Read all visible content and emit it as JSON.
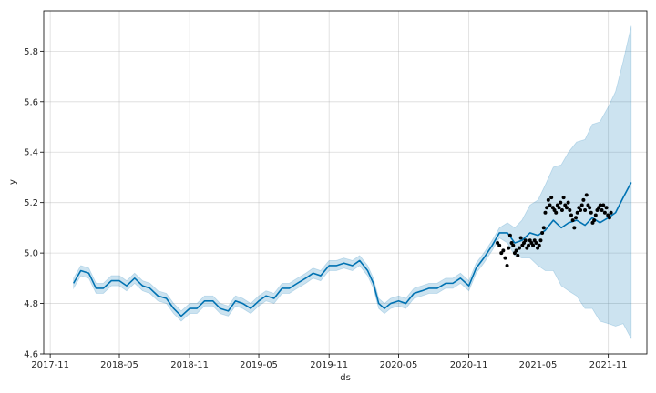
{
  "chart_data": {
    "type": "line",
    "title": "",
    "xlabel": "ds",
    "ylabel": "y",
    "grid": true,
    "xlim": [
      "2017-10-15",
      "2022-02-10"
    ],
    "ylim": [
      4.6,
      5.96
    ],
    "x_ticks": [
      "2017-11",
      "2018-05",
      "2018-11",
      "2019-05",
      "2019-11",
      "2020-05",
      "2020-11",
      "2021-05",
      "2021-11"
    ],
    "y_ticks": [
      "4.6",
      "4.8",
      "5.0",
      "5.2",
      "5.4",
      "5.6",
      "5.8"
    ],
    "colors": {
      "forecast": "#0072b2",
      "interval": "#0072b2",
      "observed": "#000000"
    },
    "forecast": {
      "x": [
        "2018-01-01",
        "2018-01-20",
        "2018-02-10",
        "2018-03-01",
        "2018-03-20",
        "2018-04-10",
        "2018-05-01",
        "2018-05-20",
        "2018-06-10",
        "2018-07-01",
        "2018-07-20",
        "2018-08-10",
        "2018-09-01",
        "2018-09-20",
        "2018-10-10",
        "2018-11-01",
        "2018-11-20",
        "2018-12-10",
        "2019-01-01",
        "2019-01-20",
        "2019-02-10",
        "2019-03-01",
        "2019-03-20",
        "2019-04-10",
        "2019-05-01",
        "2019-05-20",
        "2019-06-10",
        "2019-07-01",
        "2019-07-20",
        "2019-08-10",
        "2019-09-01",
        "2019-09-20",
        "2019-10-10",
        "2019-11-01",
        "2019-11-20",
        "2019-12-10",
        "2020-01-01",
        "2020-01-20",
        "2020-02-10",
        "2020-02-25",
        "2020-03-10",
        "2020-03-25",
        "2020-04-10",
        "2020-05-01",
        "2020-05-20",
        "2020-06-10",
        "2020-07-01",
        "2020-07-20",
        "2020-08-10",
        "2020-09-01",
        "2020-09-20",
        "2020-10-10",
        "2020-11-01",
        "2020-11-20",
        "2020-12-10",
        "2021-01-01",
        "2021-01-20",
        "2021-02-10",
        "2021-03-01",
        "2021-03-20",
        "2021-04-10",
        "2021-05-01",
        "2021-05-20",
        "2021-06-10",
        "2021-07-01",
        "2021-07-20",
        "2021-08-10",
        "2021-09-01",
        "2021-09-20",
        "2021-10-10",
        "2021-11-01",
        "2021-11-20",
        "2021-12-10",
        "2021-12-31"
      ],
      "yhat": [
        4.88,
        4.93,
        4.92,
        4.86,
        4.86,
        4.89,
        4.89,
        4.87,
        4.9,
        4.87,
        4.86,
        4.83,
        4.82,
        4.78,
        4.75,
        4.78,
        4.78,
        4.81,
        4.81,
        4.78,
        4.77,
        4.81,
        4.8,
        4.78,
        4.81,
        4.83,
        4.82,
        4.86,
        4.86,
        4.88,
        4.9,
        4.92,
        4.91,
        4.95,
        4.95,
        4.96,
        4.95,
        4.97,
        4.93,
        4.88,
        4.8,
        4.78,
        4.8,
        4.81,
        4.8,
        4.84,
        4.85,
        4.86,
        4.86,
        4.88,
        4.88,
        4.9,
        4.87,
        4.94,
        4.98,
        5.03,
        5.08,
        5.08,
        5.04,
        5.05,
        5.08,
        5.07,
        5.09,
        5.13,
        5.1,
        5.12,
        5.13,
        5.11,
        5.14,
        5.12,
        5.14,
        5.16,
        5.22,
        5.28
      ],
      "lower": [
        4.86,
        4.91,
        4.9,
        4.84,
        4.84,
        4.87,
        4.87,
        4.85,
        4.88,
        4.85,
        4.84,
        4.81,
        4.8,
        4.76,
        4.73,
        4.76,
        4.76,
        4.79,
        4.79,
        4.76,
        4.75,
        4.79,
        4.78,
        4.76,
        4.79,
        4.81,
        4.8,
        4.84,
        4.84,
        4.86,
        4.88,
        4.9,
        4.89,
        4.93,
        4.93,
        4.94,
        4.93,
        4.95,
        4.91,
        4.86,
        4.78,
        4.76,
        4.78,
        4.79,
        4.78,
        4.82,
        4.83,
        4.84,
        4.84,
        4.86,
        4.86,
        4.88,
        4.85,
        4.92,
        4.96,
        5.01,
        5.06,
        5.04,
        4.99,
        4.98,
        4.98,
        4.95,
        4.93,
        4.93,
        4.87,
        4.85,
        4.83,
        4.78,
        4.78,
        4.73,
        4.72,
        4.71,
        4.72,
        4.66
      ],
      "upper": [
        4.9,
        4.95,
        4.94,
        4.88,
        4.88,
        4.91,
        4.91,
        4.89,
        4.92,
        4.89,
        4.88,
        4.85,
        4.84,
        4.8,
        4.77,
        4.8,
        4.8,
        4.83,
        4.83,
        4.8,
        4.79,
        4.83,
        4.82,
        4.8,
        4.83,
        4.85,
        4.84,
        4.88,
        4.88,
        4.9,
        4.92,
        4.94,
        4.93,
        4.97,
        4.97,
        4.98,
        4.97,
        4.99,
        4.95,
        4.9,
        4.82,
        4.8,
        4.82,
        4.83,
        4.82,
        4.86,
        4.87,
        4.88,
        4.88,
        4.9,
        4.9,
        4.92,
        4.89,
        4.96,
        5.0,
        5.05,
        5.1,
        5.12,
        5.1,
        5.13,
        5.19,
        5.21,
        5.27,
        5.34,
        5.35,
        5.4,
        5.44,
        5.45,
        5.51,
        5.52,
        5.58,
        5.64,
        5.76,
        5.9
      ]
    },
    "observed": {
      "x": [
        "2021-01-15",
        "2021-01-20",
        "2021-01-25",
        "2021-01-30",
        "2021-02-04",
        "2021-02-09",
        "2021-02-13",
        "2021-02-17",
        "2021-02-21",
        "2021-02-25",
        "2021-03-01",
        "2021-03-05",
        "2021-03-09",
        "2021-03-13",
        "2021-03-17",
        "2021-03-21",
        "2021-03-25",
        "2021-03-29",
        "2021-04-02",
        "2021-04-06",
        "2021-04-10",
        "2021-04-14",
        "2021-04-18",
        "2021-04-22",
        "2021-04-26",
        "2021-04-30",
        "2021-05-04",
        "2021-05-08",
        "2021-05-12",
        "2021-05-16",
        "2021-05-20",
        "2021-05-24",
        "2021-05-28",
        "2021-06-01",
        "2021-06-05",
        "2021-06-09",
        "2021-06-13",
        "2021-06-17",
        "2021-06-21",
        "2021-06-25",
        "2021-06-29",
        "2021-07-03",
        "2021-07-07",
        "2021-07-11",
        "2021-07-15",
        "2021-07-19",
        "2021-07-23",
        "2021-07-27",
        "2021-07-31",
        "2021-08-04",
        "2021-08-08",
        "2021-08-12",
        "2021-08-16",
        "2021-08-20",
        "2021-08-24",
        "2021-08-28",
        "2021-09-01",
        "2021-09-05",
        "2021-09-09",
        "2021-09-13",
        "2021-09-17",
        "2021-09-21",
        "2021-09-25",
        "2021-09-29",
        "2021-10-03",
        "2021-10-07",
        "2021-10-11",
        "2021-10-15",
        "2021-10-19",
        "2021-10-23",
        "2021-10-27",
        "2021-10-31",
        "2021-11-04",
        "2021-11-08"
      ],
      "y": [
        5.04,
        5.03,
        5.0,
        5.01,
        4.98,
        4.95,
        5.02,
        5.07,
        5.04,
        5.03,
        5.0,
        5.01,
        4.99,
        5.02,
        5.06,
        5.03,
        5.04,
        5.05,
        5.02,
        5.03,
        5.05,
        5.04,
        5.03,
        5.05,
        5.04,
        5.02,
        5.03,
        5.05,
        5.08,
        5.1,
        5.16,
        5.18,
        5.21,
        5.19,
        5.22,
        5.18,
        5.17,
        5.16,
        5.19,
        5.18,
        5.2,
        5.17,
        5.22,
        5.19,
        5.18,
        5.2,
        5.17,
        5.15,
        5.13,
        5.1,
        5.14,
        5.16,
        5.18,
        5.17,
        5.19,
        5.21,
        5.17,
        5.23,
        5.19,
        5.18,
        5.16,
        5.12,
        5.13,
        5.15,
        5.17,
        5.18,
        5.19,
        5.17,
        5.19,
        5.16,
        5.18,
        5.15,
        5.14,
        5.16
      ]
    }
  }
}
